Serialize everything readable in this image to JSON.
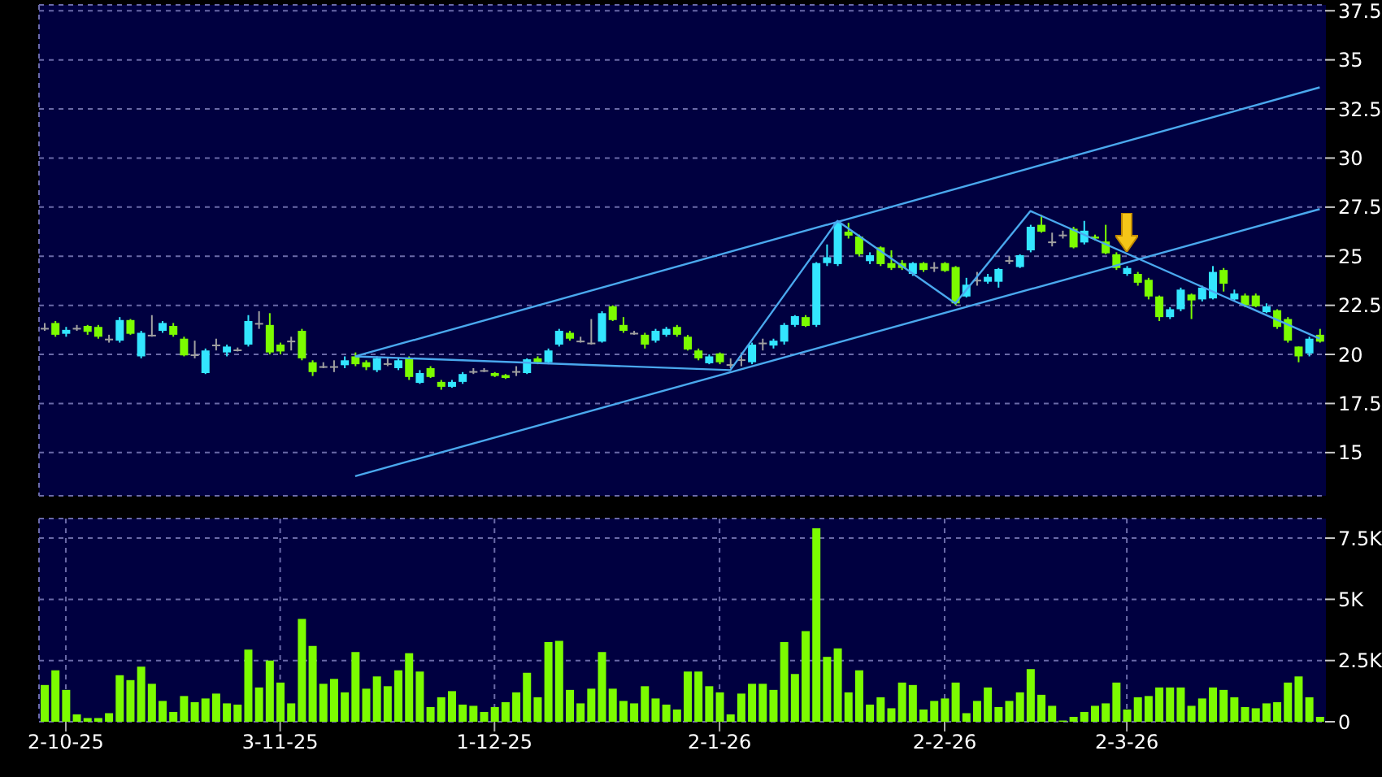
{
  "chart_data": [
    {
      "type": "candlestick",
      "categories": [
        null,
        null,
        null,
        null,
        null,
        null,
        null,
        null,
        null,
        null,
        null,
        null,
        null,
        null,
        null,
        null,
        null,
        null,
        null,
        null,
        null,
        null,
        null,
        null,
        null,
        null,
        null,
        null,
        null,
        null,
        null,
        null,
        null,
        null,
        null,
        null,
        null,
        null,
        null,
        null,
        null,
        null,
        null,
        null,
        null,
        null,
        null,
        null,
        null,
        null,
        null,
        null,
        null,
        null,
        null,
        null,
        null,
        null,
        null,
        null,
        null,
        null,
        null,
        null,
        null,
        null,
        null,
        null,
        null,
        null,
        null,
        null,
        null,
        null,
        null,
        null,
        null,
        null,
        null,
        null,
        null,
        null,
        null,
        null,
        null,
        null,
        null,
        null,
        null,
        null,
        null,
        null,
        null,
        null,
        null,
        null,
        null,
        null,
        null,
        null,
        null,
        null,
        null,
        null,
        null,
        null,
        null,
        null,
        null,
        null,
        null,
        null,
        null,
        null,
        null,
        null,
        null,
        null,
        null,
        null
      ],
      "ohlc": [
        [
          21.35,
          21.6,
          21.2,
          21.35
        ],
        [
          21.6,
          21.7,
          20.9,
          21.0
        ],
        [
          21.05,
          21.4,
          20.9,
          21.25
        ],
        [
          21.35,
          21.5,
          21.2,
          21.35
        ],
        [
          21.45,
          21.5,
          21.0,
          21.15
        ],
        [
          21.4,
          21.5,
          20.8,
          20.9
        ],
        [
          20.8,
          21.0,
          20.6,
          20.8
        ],
        [
          20.7,
          21.9,
          20.6,
          21.75
        ],
        [
          21.75,
          21.8,
          21.0,
          21.05
        ],
        [
          19.9,
          21.2,
          19.8,
          21.1
        ],
        [
          21.0,
          22.0,
          20.9,
          21.0
        ],
        [
          21.2,
          21.7,
          21.1,
          21.6
        ],
        [
          21.45,
          21.6,
          20.9,
          21.0
        ],
        [
          20.8,
          20.9,
          19.9,
          19.95
        ],
        [
          20.0,
          20.7,
          19.8,
          20.0
        ],
        [
          19.05,
          20.3,
          19.0,
          20.2
        ],
        [
          20.5,
          20.8,
          20.2,
          20.5
        ],
        [
          20.1,
          20.5,
          19.9,
          20.4
        ],
        [
          20.25,
          20.35,
          20.15,
          20.25
        ],
        [
          20.5,
          22.0,
          20.4,
          21.7
        ],
        [
          21.6,
          22.2,
          21.3,
          21.6
        ],
        [
          21.5,
          22.1,
          20.0,
          20.1
        ],
        [
          20.5,
          20.6,
          20.0,
          20.15
        ],
        [
          20.7,
          20.9,
          20.2,
          20.7
        ],
        [
          21.2,
          21.3,
          19.7,
          19.8
        ],
        [
          19.6,
          19.7,
          18.9,
          19.1
        ],
        [
          19.4,
          19.6,
          19.3,
          19.4
        ],
        [
          19.4,
          19.7,
          19.1,
          19.4
        ],
        [
          19.45,
          19.9,
          19.3,
          19.7
        ],
        [
          19.9,
          20.1,
          19.4,
          19.5
        ],
        [
          19.6,
          19.7,
          19.2,
          19.35
        ],
        [
          19.2,
          19.9,
          19.1,
          19.8
        ],
        [
          19.55,
          19.8,
          19.4,
          19.55
        ],
        [
          19.3,
          19.8,
          19.2,
          19.7
        ],
        [
          19.8,
          19.9,
          18.7,
          18.85
        ],
        [
          18.55,
          19.2,
          18.5,
          19.05
        ],
        [
          19.3,
          19.4,
          18.8,
          18.85
        ],
        [
          18.6,
          18.7,
          18.2,
          18.35
        ],
        [
          18.35,
          18.7,
          18.3,
          18.6
        ],
        [
          18.6,
          19.1,
          18.5,
          19.0
        ],
        [
          19.15,
          19.3,
          19.0,
          19.15
        ],
        [
          19.2,
          19.3,
          19.1,
          19.2
        ],
        [
          19.05,
          19.1,
          18.85,
          18.9
        ],
        [
          18.95,
          19.0,
          18.75,
          18.8
        ],
        [
          19.15,
          19.4,
          18.9,
          19.15
        ],
        [
          19.05,
          19.8,
          19.0,
          19.75
        ],
        [
          19.8,
          19.9,
          19.5,
          19.6
        ],
        [
          19.6,
          20.3,
          19.5,
          20.2
        ],
        [
          20.5,
          21.3,
          20.4,
          21.2
        ],
        [
          21.1,
          21.2,
          20.7,
          20.8
        ],
        [
          20.7,
          20.9,
          20.6,
          20.7
        ],
        [
          20.6,
          21.8,
          20.5,
          20.6
        ],
        [
          20.65,
          22.2,
          20.6,
          22.1
        ],
        [
          22.45,
          22.5,
          21.7,
          21.75
        ],
        [
          21.5,
          21.9,
          21.1,
          21.2
        ],
        [
          21.1,
          21.2,
          21.0,
          21.1
        ],
        [
          21.0,
          21.1,
          20.3,
          20.5
        ],
        [
          20.7,
          21.3,
          20.6,
          21.2
        ],
        [
          21.0,
          21.4,
          20.9,
          21.3
        ],
        [
          21.4,
          21.5,
          20.9,
          21.0
        ],
        [
          20.9,
          21.0,
          20.2,
          20.25
        ],
        [
          20.2,
          20.3,
          19.7,
          19.8
        ],
        [
          19.55,
          20.0,
          19.5,
          19.9
        ],
        [
          20.05,
          20.1,
          19.5,
          19.6
        ],
        [
          19.5,
          19.8,
          19.3,
          19.5
        ],
        [
          19.75,
          20.1,
          19.4,
          19.75
        ],
        [
          19.6,
          20.6,
          19.5,
          20.5
        ],
        [
          20.6,
          20.8,
          20.2,
          20.6
        ],
        [
          20.45,
          20.8,
          20.3,
          20.7
        ],
        [
          20.65,
          21.6,
          20.5,
          21.5
        ],
        [
          21.5,
          22.0,
          21.4,
          21.95
        ],
        [
          21.9,
          22.0,
          21.4,
          21.45
        ],
        [
          21.5,
          24.7,
          21.4,
          24.65
        ],
        [
          24.65,
          25.6,
          24.5,
          24.95
        ],
        [
          24.6,
          26.8,
          24.5,
          26.7
        ],
        [
          26.25,
          26.7,
          25.9,
          26.05
        ],
        [
          26.0,
          26.1,
          25.0,
          25.1
        ],
        [
          24.75,
          25.2,
          24.6,
          25.05
        ],
        [
          25.45,
          25.5,
          24.5,
          24.6
        ],
        [
          24.65,
          25.3,
          24.3,
          24.4
        ],
        [
          24.65,
          24.8,
          24.3,
          24.4
        ],
        [
          24.1,
          24.7,
          24.0,
          24.65
        ],
        [
          24.65,
          24.7,
          24.2,
          24.3
        ],
        [
          24.45,
          24.7,
          24.2,
          24.45
        ],
        [
          24.65,
          24.7,
          24.2,
          24.25
        ],
        [
          24.45,
          24.5,
          22.5,
          22.6
        ],
        [
          22.95,
          23.9,
          22.9,
          23.55
        ],
        [
          23.8,
          24.2,
          23.5,
          23.8
        ],
        [
          23.7,
          24.1,
          23.6,
          23.95
        ],
        [
          23.7,
          24.4,
          23.4,
          24.35
        ],
        [
          24.8,
          25.0,
          24.6,
          24.8
        ],
        [
          24.45,
          25.1,
          24.4,
          25.05
        ],
        [
          25.3,
          26.6,
          25.2,
          26.5
        ],
        [
          26.6,
          27.1,
          26.2,
          26.25
        ],
        [
          25.75,
          26.2,
          25.5,
          25.75
        ],
        [
          26.1,
          26.3,
          25.9,
          26.1
        ],
        [
          26.4,
          26.5,
          25.4,
          25.45
        ],
        [
          25.7,
          26.8,
          25.6,
          26.3
        ],
        [
          26.0,
          26.1,
          25.8,
          25.9
        ],
        [
          25.75,
          26.6,
          25.1,
          25.15
        ],
        [
          25.1,
          25.2,
          24.3,
          24.4
        ],
        [
          24.1,
          24.5,
          24.0,
          24.4
        ],
        [
          24.1,
          24.2,
          23.5,
          23.65
        ],
        [
          23.8,
          23.9,
          22.8,
          22.95
        ],
        [
          22.95,
          23.0,
          21.7,
          21.9
        ],
        [
          21.9,
          22.4,
          21.8,
          22.3
        ],
        [
          22.3,
          23.4,
          22.2,
          23.3
        ],
        [
          23.05,
          23.1,
          21.8,
          22.75
        ],
        [
          22.8,
          23.5,
          22.7,
          23.4
        ],
        [
          22.85,
          24.5,
          22.8,
          24.2
        ],
        [
          24.3,
          24.4,
          23.2,
          23.6
        ],
        [
          22.8,
          23.3,
          22.7,
          23.1
        ],
        [
          23.0,
          23.1,
          22.4,
          22.5
        ],
        [
          23.0,
          23.1,
          22.4,
          22.45
        ],
        [
          22.15,
          22.6,
          22.1,
          22.45
        ],
        [
          22.25,
          22.3,
          21.3,
          21.4
        ],
        [
          21.8,
          21.9,
          20.6,
          20.7
        ],
        [
          20.4,
          20.4,
          19.6,
          19.9
        ],
        [
          20.05,
          20.9,
          19.9,
          20.8
        ],
        [
          21.0,
          21.3,
          20.6,
          20.65
        ]
      ],
      "colors": [
        "#a0a0a0",
        "#7cfc00",
        "#33e6ff",
        "#a0a0a0",
        "#7cfc00",
        "#7cfc00",
        "#a0a0a0",
        "#33e6ff",
        "#7cfc00",
        "#33e6ff",
        "#a0a0a0",
        "#33e6ff",
        "#7cfc00",
        "#7cfc00",
        "#a0a0a0",
        "#33e6ff",
        "#a0a0a0",
        "#33e6ff",
        "#a0a0a0",
        "#33e6ff",
        "#a0a0a0",
        "#7cfc00",
        "#7cfc00",
        "#a0a0a0",
        "#7cfc00",
        "#7cfc00",
        "#a0a0a0",
        "#a0a0a0",
        "#33e6ff",
        "#7cfc00",
        "#7cfc00",
        "#33e6ff",
        "#a0a0a0",
        "#33e6ff",
        "#7cfc00",
        "#33e6ff",
        "#7cfc00",
        "#7cfc00",
        "#33e6ff",
        "#33e6ff",
        "#a0a0a0",
        "#a0a0a0",
        "#7cfc00",
        "#7cfc00",
        "#a0a0a0",
        "#33e6ff",
        "#7cfc00",
        "#33e6ff",
        "#33e6ff",
        "#7cfc00",
        "#a0a0a0",
        "#a0a0a0",
        "#33e6ff",
        "#7cfc00",
        "#7cfc00",
        "#a0a0a0",
        "#7cfc00",
        "#33e6ff",
        "#33e6ff",
        "#7cfc00",
        "#7cfc00",
        "#7cfc00",
        "#33e6ff",
        "#7cfc00",
        "#a0a0a0",
        "#a0a0a0",
        "#33e6ff",
        "#a0a0a0",
        "#33e6ff",
        "#33e6ff",
        "#33e6ff",
        "#7cfc00",
        "#33e6ff",
        "#33e6ff",
        "#33e6ff",
        "#7cfc00",
        "#7cfc00",
        "#33e6ff",
        "#7cfc00",
        "#7cfc00",
        "#7cfc00",
        "#33e6ff",
        "#7cfc00",
        "#a0a0a0",
        "#7cfc00",
        "#7cfc00",
        "#33e6ff",
        "#a0a0a0",
        "#33e6ff",
        "#33e6ff",
        "#a0a0a0",
        "#33e6ff",
        "#33e6ff",
        "#7cfc00",
        "#a0a0a0",
        "#a0a0a0",
        "#7cfc00",
        "#33e6ff",
        "#7cfc00",
        "#7cfc00",
        "#7cfc00",
        "#33e6ff",
        "#7cfc00",
        "#7cfc00",
        "#7cfc00",
        "#33e6ff",
        "#33e6ff",
        "#7cfc00",
        "#33e6ff",
        "#33e6ff",
        "#7cfc00",
        "#33e6ff",
        "#7cfc00",
        "#7cfc00",
        "#33e6ff",
        "#7cfc00",
        "#7cfc00",
        "#7cfc00",
        "#33e6ff",
        "#7cfc00"
      ],
      "series": [
        {
          "type": "line",
          "color": "#4aa8ee",
          "values": [
            null,
            null,
            null,
            null,
            null,
            null,
            null,
            null,
            null,
            null,
            null,
            null,
            null,
            null,
            null,
            null,
            null,
            null,
            null,
            null,
            null,
            null,
            null,
            null,
            null,
            null,
            null,
            null,
            null,
            19.9,
            null,
            null,
            null,
            null,
            null,
            null,
            null,
            null,
            null,
            null,
            null,
            null,
            null,
            null,
            null,
            null,
            null,
            null,
            null,
            null,
            null,
            null,
            null,
            null,
            null,
            null,
            null,
            null,
            null,
            null,
            null,
            null,
            null,
            null,
            null,
            null,
            null,
            null,
            null,
            null,
            null,
            null,
            null,
            null,
            null,
            null,
            null,
            null,
            null,
            null,
            null,
            null,
            null,
            null,
            null,
            null,
            null,
            null,
            null,
            null,
            null,
            null,
            null,
            null,
            null,
            null,
            null,
            null,
            null,
            null,
            null,
            null,
            null,
            null,
            null,
            null,
            null,
            null,
            null,
            null,
            null,
            null,
            null,
            null,
            null,
            null,
            null,
            null,
            null,
            33.6
          ]
        },
        {
          "type": "line",
          "color": "#4aa8ee",
          "values": [
            null,
            null,
            null,
            null,
            null,
            null,
            null,
            null,
            null,
            null,
            null,
            null,
            null,
            null,
            null,
            null,
            null,
            null,
            null,
            null,
            null,
            null,
            null,
            null,
            null,
            null,
            null,
            null,
            null,
            13.8,
            null,
            null,
            null,
            null,
            null,
            null,
            null,
            null,
            null,
            null,
            null,
            null,
            null,
            null,
            null,
            null,
            null,
            null,
            null,
            null,
            null,
            null,
            null,
            null,
            null,
            null,
            null,
            null,
            null,
            null,
            null,
            null,
            null,
            null,
            null,
            null,
            null,
            null,
            null,
            null,
            null,
            null,
            null,
            null,
            null,
            null,
            null,
            null,
            null,
            null,
            null,
            null,
            null,
            null,
            null,
            null,
            null,
            null,
            null,
            null,
            null,
            null,
            null,
            null,
            null,
            null,
            null,
            null,
            null,
            null,
            null,
            null,
            null,
            null,
            null,
            null,
            null,
            null,
            null,
            null,
            null,
            null,
            null,
            null,
            null,
            null,
            null,
            null,
            null,
            27.4
          ]
        },
        {
          "type": "line",
          "color": "#4aa8ee",
          "values": [
            null,
            null,
            null,
            null,
            null,
            null,
            null,
            null,
            null,
            null,
            null,
            null,
            null,
            null,
            null,
            null,
            null,
            null,
            null,
            null,
            null,
            null,
            null,
            null,
            null,
            null,
            null,
            null,
            null,
            19.9,
            null,
            null,
            null,
            null,
            null,
            null,
            null,
            null,
            null,
            null,
            null,
            null,
            null,
            null,
            null,
            null,
            null,
            null,
            null,
            null,
            null,
            null,
            null,
            null,
            null,
            null,
            null,
            null,
            null,
            null,
            null,
            null,
            null,
            null,
            19.2,
            null,
            null,
            null,
            null,
            null,
            null,
            null,
            null,
            null,
            26.8,
            null,
            null,
            null,
            null,
            null,
            null,
            null,
            null,
            null,
            null,
            22.6,
            null,
            null,
            null,
            null,
            null,
            null,
            27.3,
            null,
            null,
            null,
            null,
            null,
            null,
            null,
            null,
            null,
            null,
            null,
            null,
            null,
            null,
            null,
            null,
            null,
            null,
            null,
            null,
            null,
            null,
            null,
            null,
            null,
            null,
            20.8
          ]
        }
      ],
      "ylim": [
        12.8,
        37.8
      ],
      "yticks": [
        15,
        17.5,
        20,
        22.5,
        25,
        27.5,
        30,
        32.5,
        35,
        37.5
      ],
      "grid": true,
      "tick_labels": "y"
    },
    {
      "type": "bar",
      "categories": [
        null,
        null,
        "2-10-25",
        null,
        null,
        null,
        null,
        null,
        null,
        null,
        null,
        null,
        null,
        null,
        null,
        null,
        null,
        null,
        null,
        null,
        null,
        null,
        "3-11-25",
        null,
        null,
        null,
        null,
        null,
        null,
        null,
        null,
        null,
        null,
        null,
        null,
        null,
        null,
        null,
        null,
        null,
        null,
        null,
        "1-12-25",
        null,
        null,
        null,
        null,
        null,
        null,
        null,
        null,
        null,
        null,
        null,
        null,
        null,
        null,
        null,
        null,
        null,
        null,
        null,
        null,
        "2-1-26",
        null,
        null,
        null,
        null,
        null,
        null,
        null,
        null,
        null,
        null,
        null,
        null,
        null,
        null,
        null,
        null,
        null,
        null,
        null,
        null,
        "2-2-26",
        null,
        null,
        null,
        null,
        null,
        null,
        null,
        null,
        null,
        null,
        null,
        null,
        null,
        null,
        null,
        null,
        "2-3-26",
        null,
        null,
        null,
        null,
        null,
        null,
        null,
        null,
        null,
        null,
        null,
        null,
        null,
        null,
        null,
        null,
        null,
        null
      ],
      "color": "#7cfc00",
      "values": [
        1500,
        2100,
        1300,
        300,
        150,
        150,
        350,
        1900,
        1700,
        2250,
        1550,
        850,
        400,
        1050,
        800,
        950,
        1150,
        750,
        700,
        2950,
        1400,
        2500,
        1600,
        750,
        4200,
        3100,
        1550,
        1750,
        1200,
        2850,
        1350,
        1850,
        1450,
        2100,
        2800,
        2050,
        600,
        1000,
        1250,
        700,
        650,
        400,
        600,
        800,
        1200,
        2000,
        1000,
        3250,
        3300,
        1300,
        750,
        1350,
        2850,
        1350,
        850,
        750,
        1450,
        950,
        700,
        500,
        2050,
        2050,
        1450,
        1200,
        300,
        1150,
        1550,
        1550,
        1300,
        3250,
        1950,
        3700,
        7900,
        2650,
        3000,
        1200,
        2100,
        700,
        1000,
        550,
        1600,
        1500,
        500,
        850,
        950,
        1600,
        350,
        850,
        1400,
        600,
        850,
        1200,
        2150,
        1100,
        650,
        50,
        200,
        400,
        650,
        750,
        1600,
        500,
        1000,
        1050,
        1400,
        1400,
        1400,
        650,
        950,
        1400,
        1300,
        1000,
        600,
        550,
        750,
        800,
        1600,
        1850,
        1000,
        200
      ],
      "ylim": [
        0,
        8300
      ],
      "yticks": [
        0,
        {
          "value": 2500,
          "label": "2.5K"
        },
        {
          "value": 5000,
          "label": "5K"
        },
        {
          "value": 7500,
          "label": "7.5K"
        }
      ],
      "grid": true
    }
  ]
}
